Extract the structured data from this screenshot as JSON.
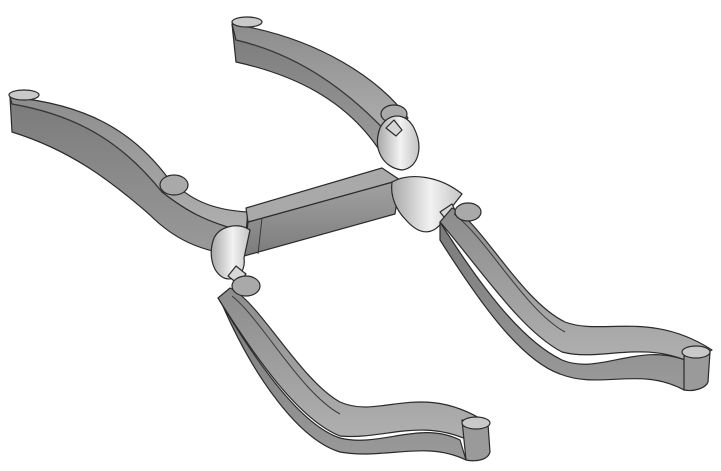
{
  "scene": {
    "background": "#ffffff",
    "colors": {
      "shadow": "#6e6e6e",
      "mid": "#9a9a9a",
      "face": "#b7b7b7",
      "highlight": "#e8e8e8",
      "edge": "#2a2a2a"
    }
  }
}
